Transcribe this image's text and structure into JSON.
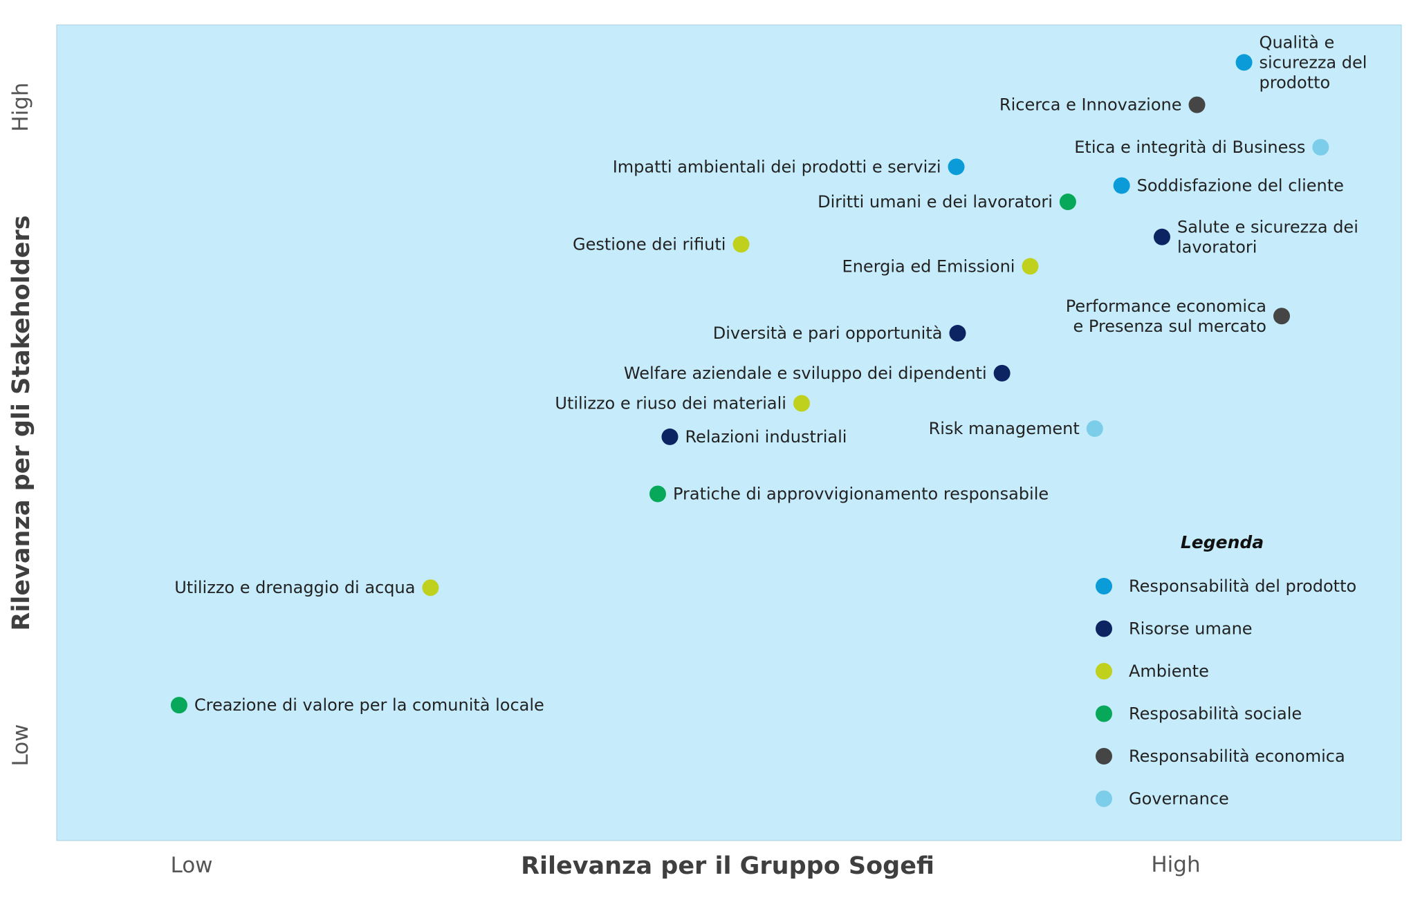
{
  "chart_data": {
    "type": "scatter",
    "xlabel": "Rilevanza per il Gruppo Sogefi",
    "ylabel": "Rilevanza per gli Stakeholders",
    "x_ticks": {
      "low": "Low",
      "high": "High"
    },
    "y_ticks": {
      "low": "Low",
      "high": "High"
    },
    "xlim": [
      0,
      100
    ],
    "ylim": [
      0,
      100
    ],
    "grid": false,
    "legend_placement": "bottom-right",
    "legend_title": "Legenda",
    "categories": [
      {
        "id": "prodotto",
        "name": "Responsabilità del prodotto",
        "color": "#0a9bd8"
      },
      {
        "id": "risorse",
        "name": "Risorse umane",
        "color": "#0c2461"
      },
      {
        "id": "ambiente",
        "name": "Ambiente",
        "color": "#bfd01d"
      },
      {
        "id": "sociale",
        "name": "Resposabilità sociale",
        "color": "#07a85a"
      },
      {
        "id": "economica",
        "name": "Responsabilità economica",
        "color": "#454545"
      },
      {
        "id": "governance",
        "name": "Governance",
        "color": "#7ccde9"
      }
    ],
    "points": [
      {
        "label": [
          "Qualità e",
          "sicurezza del",
          "prodotto"
        ],
        "category": "prodotto",
        "x": 88.3,
        "y": 95.4,
        "label_side": "right"
      },
      {
        "label": [
          "Ricerca e Innovazione"
        ],
        "category": "economica",
        "x": 84.8,
        "y": 90.2,
        "label_side": "left"
      },
      {
        "label": [
          "Etica e integrità di Business"
        ],
        "category": "governance",
        "x": 94.0,
        "y": 85.0,
        "label_side": "left"
      },
      {
        "label": [
          "Impatti ambientali dei prodotti e servizi"
        ],
        "category": "prodotto",
        "x": 66.9,
        "y": 82.6,
        "label_side": "left"
      },
      {
        "label": [
          "Soddisfazione del cliente"
        ],
        "category": "prodotto",
        "x": 79.2,
        "y": 80.3,
        "label_side": "right"
      },
      {
        "label": [
          "Diritti umani e dei lavoratori"
        ],
        "category": "sociale",
        "x": 75.2,
        "y": 78.3,
        "label_side": "left"
      },
      {
        "label": [
          "Salute e sicurezza dei",
          "lavoratori"
        ],
        "category": "risorse",
        "x": 82.2,
        "y": 74.0,
        "label_side": "right"
      },
      {
        "label": [
          "Gestione dei rifiuti"
        ],
        "category": "ambiente",
        "x": 50.9,
        "y": 73.1,
        "label_side": "left"
      },
      {
        "label": [
          "Energia ed Emissioni"
        ],
        "category": "ambiente",
        "x": 72.4,
        "y": 70.4,
        "label_side": "left"
      },
      {
        "label": [
          "Performance economica",
          "e Presenza sul mercato"
        ],
        "category": "economica",
        "x": 91.1,
        "y": 64.3,
        "label_side": "left"
      },
      {
        "label": [
          "Diversità e pari opportunità"
        ],
        "category": "risorse",
        "x": 67.0,
        "y": 62.2,
        "label_side": "left"
      },
      {
        "label": [
          "Welfare aziendale e sviluppo dei dipendenti"
        ],
        "category": "risorse",
        "x": 70.3,
        "y": 57.3,
        "label_side": "left"
      },
      {
        "label": [
          "Utilizzo e riuso dei materiali"
        ],
        "category": "ambiente",
        "x": 55.4,
        "y": 53.6,
        "label_side": "left"
      },
      {
        "label": [
          "Risk management"
        ],
        "category": "governance",
        "x": 77.2,
        "y": 50.5,
        "label_side": "left"
      },
      {
        "label": [
          "Relazioni industriali"
        ],
        "category": "risorse",
        "x": 45.6,
        "y": 49.5,
        "label_side": "right"
      },
      {
        "label": [
          "Pratiche di approvvigionamento responsabile"
        ],
        "category": "sociale",
        "x": 44.7,
        "y": 42.5,
        "label_side": "right"
      },
      {
        "label": [
          "Utilizzo e drenaggio di acqua"
        ],
        "category": "ambiente",
        "x": 27.8,
        "y": 31.0,
        "label_side": "left"
      },
      {
        "label": [
          "Creazione di valore per la comunità locale"
        ],
        "category": "sociale",
        "x": 9.1,
        "y": 16.6,
        "label_side": "right"
      }
    ]
  }
}
